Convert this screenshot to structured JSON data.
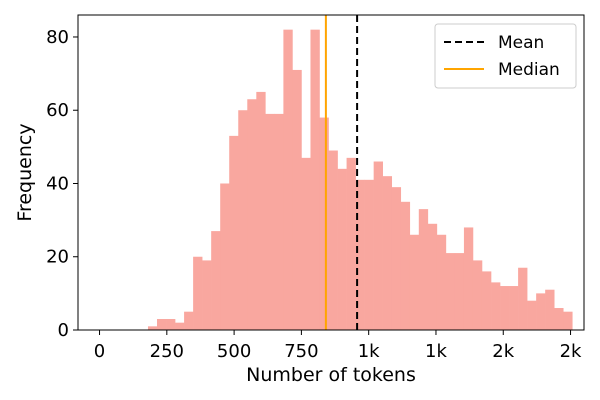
{
  "chart_data": {
    "type": "bar",
    "subtype": "histogram",
    "xlabel": "Number of tokens",
    "ylabel": "Frequency",
    "x_tick_labels": [
      "0",
      "250",
      "500",
      "750",
      "1k",
      "1k",
      "2k",
      "2k"
    ],
    "x_tick_values": [
      0,
      250,
      500,
      750,
      1000,
      1250,
      1500,
      1750
    ],
    "xlim": [
      -80,
      1800
    ],
    "ylim": [
      0,
      86
    ],
    "y_ticks": [
      0,
      20,
      40,
      60,
      80
    ],
    "bin_start": 180,
    "bin_width": 33.54,
    "values": [
      1,
      3,
      3,
      2,
      5,
      20,
      19,
      27,
      40,
      53,
      60,
      63,
      65,
      59,
      59,
      82,
      71,
      47,
      82,
      58,
      49,
      44,
      47,
      41,
      41,
      46,
      42,
      39,
      35,
      26,
      33,
      29,
      26,
      21,
      21,
      28,
      19,
      16,
      13,
      12,
      12,
      17,
      8,
      10,
      11,
      6,
      5
    ],
    "bar_color": "#f9a79f",
    "mean": 957,
    "median": 841,
    "mean_color": "#000000",
    "median_color": "#ffa500",
    "legend": {
      "position": "top-right",
      "entries": [
        {
          "name": "Mean",
          "style": "dashed",
          "color": "#000000"
        },
        {
          "name": "Median",
          "style": "solid",
          "color": "#ffa500"
        }
      ]
    },
    "grid": false
  }
}
